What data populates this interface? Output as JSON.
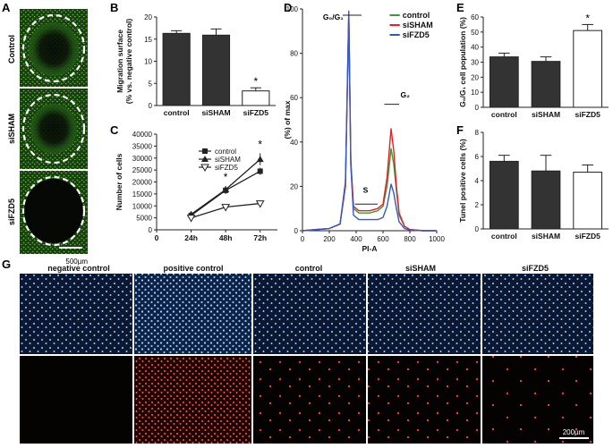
{
  "panel_letters": {
    "a": "A",
    "b": "B",
    "c": "C",
    "d": "D",
    "e": "E",
    "f": "F",
    "g": "G"
  },
  "colors": {
    "bar_dark": "#333333",
    "bar_light": "#ffffff",
    "green": "#3a9a3a",
    "red": "#e32222",
    "blue": "#3558c8",
    "micro_green": "#1c4a12",
    "micro_blue": "#123a66",
    "micro_red": "#ff3030"
  },
  "micrograph_a": {
    "row_labels": [
      "Control",
      "siSHAM",
      "siFZD5"
    ],
    "scale_bar": "500µm"
  },
  "micrograph_g": {
    "column_labels": [
      "negative control",
      "positive control",
      "control",
      "siSHAM",
      "siFZD5"
    ],
    "scale_bar": "200µm"
  },
  "chart_data": [
    {
      "panel": "B",
      "type": "bar",
      "title": "",
      "xlabel": "",
      "ylabel": "Migration surface",
      "ylabel2": "(% vs. negative control)",
      "categories": [
        "control",
        "siSHAM",
        "siFZD5"
      ],
      "values": [
        16.3,
        15.9,
        3.3
      ],
      "errors": [
        0.6,
        1.4,
        0.7
      ],
      "fills": [
        "dark",
        "dark",
        "light"
      ],
      "significance": [
        "",
        "",
        "*"
      ],
      "ylim": [
        0,
        20
      ],
      "yticks": [
        "0",
        "5",
        "10",
        "15",
        "20"
      ]
    },
    {
      "panel": "C",
      "type": "line",
      "ylabel": "Number of cells",
      "x": [
        "0",
        "24h",
        "48h",
        "72h"
      ],
      "xpos": [
        0,
        24,
        48,
        72
      ],
      "ylim": [
        0,
        40000
      ],
      "yticks": [
        "0",
        "5000",
        "10000",
        "15000",
        "20000",
        "25000",
        "30000",
        "35000",
        "40000"
      ],
      "series": [
        {
          "name": "control",
          "marker": "square",
          "x": [
            24,
            48,
            72
          ],
          "values": [
            6000,
            16500,
            24500
          ],
          "errors": [
            500,
            1500,
            1500
          ]
        },
        {
          "name": "siSHAM",
          "marker": "triangle-up",
          "x": [
            24,
            48,
            72
          ],
          "values": [
            6500,
            16800,
            29500
          ],
          "errors": [
            500,
            1500,
            2500
          ]
        },
        {
          "name": "siFZD5",
          "marker": "triangle-down",
          "x": [
            24,
            48,
            72
          ],
          "values": [
            5000,
            9500,
            11000
          ],
          "errors": [
            400,
            800,
            1200
          ]
        }
      ],
      "significance": [
        {
          "x": 48,
          "label": "*"
        },
        {
          "x": 72,
          "label": "*"
        }
      ]
    },
    {
      "panel": "D",
      "type": "line",
      "xlabel": "PI-A",
      "ylabel": "(%) of max",
      "xlim": [
        0,
        1000
      ],
      "ylim": [
        0,
        100
      ],
      "xticks": [
        "0",
        "200",
        "400",
        "600",
        "800",
        "1000"
      ],
      "yticks": [
        "0",
        "20",
        "40",
        "60",
        "80",
        "100"
      ],
      "annotations": {
        "g0g1": "G₀/G₁",
        "s": "S",
        "g2": "G₂"
      },
      "series": [
        {
          "name": "control",
          "color": "green",
          "x": [
            0,
            100,
            200,
            280,
            320,
            345,
            360,
            380,
            420,
            500,
            560,
            600,
            630,
            660,
            680,
            700,
            720,
            760,
            800,
            900,
            1000
          ],
          "values": [
            0,
            0.5,
            1,
            3,
            20,
            97,
            30,
            10,
            8,
            8,
            9,
            11,
            20,
            37,
            30,
            18,
            7,
            2,
            0.5,
            0,
            0
          ]
        },
        {
          "name": "siSHAM",
          "color": "red",
          "x": [
            0,
            100,
            200,
            280,
            320,
            345,
            360,
            380,
            420,
            500,
            560,
            600,
            630,
            660,
            680,
            700,
            720,
            760,
            800,
            900,
            1000
          ],
          "values": [
            0,
            0.5,
            1,
            3,
            20,
            98,
            32,
            11,
            9,
            9,
            10,
            12,
            24,
            46,
            36,
            20,
            8,
            2,
            0.5,
            0,
            0
          ]
        },
        {
          "name": "siFZD5",
          "color": "blue",
          "x": [
            0,
            100,
            200,
            280,
            320,
            345,
            360,
            380,
            420,
            500,
            560,
            600,
            630,
            660,
            680,
            700,
            720,
            760,
            800,
            900,
            1000
          ],
          "values": [
            0,
            0.5,
            1,
            3,
            22,
            99,
            30,
            7,
            5,
            5,
            5,
            6,
            11,
            21,
            17,
            10,
            4,
            1,
            0.3,
            0,
            0
          ]
        }
      ]
    },
    {
      "panel": "E",
      "type": "bar",
      "ylabel": "G₀/G₁ cell population (%)",
      "categories": [
        "control",
        "siSHAM",
        "siFZD5"
      ],
      "values": [
        33.5,
        30.5,
        51
      ],
      "errors": [
        2.5,
        3,
        4
      ],
      "fills": [
        "dark",
        "dark",
        "light"
      ],
      "significance": [
        "",
        "",
        "*"
      ],
      "ylim": [
        0,
        60
      ],
      "yticks": [
        "0",
        "10",
        "20",
        "30",
        "40",
        "50",
        "60"
      ]
    },
    {
      "panel": "F",
      "type": "bar",
      "ylabel": "Tunel positive cells (%)",
      "categories": [
        "control",
        "siSHAM",
        "siFZD5"
      ],
      "values": [
        5.6,
        4.8,
        4.7
      ],
      "errors": [
        0.5,
        1.3,
        0.6
      ],
      "fills": [
        "dark",
        "dark",
        "light"
      ],
      "significance": [
        "",
        "",
        ""
      ],
      "ylim": [
        0,
        8
      ],
      "yticks": [
        "0",
        "2",
        "4",
        "6",
        "8"
      ]
    }
  ]
}
